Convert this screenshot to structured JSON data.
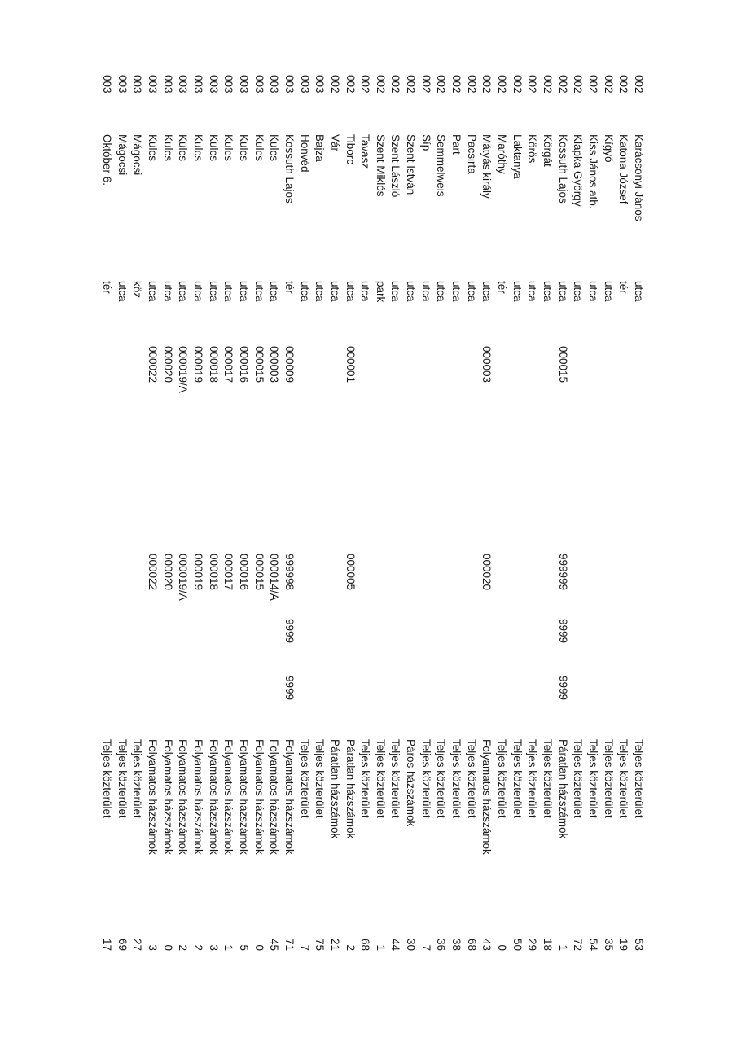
{
  "rows": [
    {
      "code": "002",
      "name": "Karácsonyi János",
      "type": "utca",
      "from": "",
      "to": "",
      "x1": "",
      "x2": "",
      "scope": "Teljes közterület",
      "count": "53"
    },
    {
      "code": "002",
      "name": "Katona József",
      "type": "tér",
      "from": "",
      "to": "",
      "x1": "",
      "x2": "",
      "scope": "Teljes közterület",
      "count": "19"
    },
    {
      "code": "002",
      "name": "Kígyó",
      "type": "utca",
      "from": "",
      "to": "",
      "x1": "",
      "x2": "",
      "scope": "Teljes közterület",
      "count": "35"
    },
    {
      "code": "002",
      "name": "Kiss János atb.",
      "type": "utca",
      "from": "",
      "to": "",
      "x1": "",
      "x2": "",
      "scope": "Teljes közterület",
      "count": "54"
    },
    {
      "code": "002",
      "name": "Klapka György",
      "type": "utca",
      "from": "",
      "to": "",
      "x1": "",
      "x2": "",
      "scope": "Teljes közterület",
      "count": "72"
    },
    {
      "code": "002",
      "name": "Kossuth Lajos",
      "type": "utca",
      "from": "000015",
      "to": "999999",
      "x1": "9999",
      "x2": "9999",
      "scope": "Páratlan házszámok",
      "count": "1"
    },
    {
      "code": "002",
      "name": "Körgát",
      "type": "utca",
      "from": "",
      "to": "",
      "x1": "",
      "x2": "",
      "scope": "Teljes közterület",
      "count": "18"
    },
    {
      "code": "002",
      "name": "Körös",
      "type": "utca",
      "from": "",
      "to": "",
      "x1": "",
      "x2": "",
      "scope": "Teljes közterület",
      "count": "29"
    },
    {
      "code": "002",
      "name": "Laktanya",
      "type": "utca",
      "from": "",
      "to": "",
      "x1": "",
      "x2": "",
      "scope": "Teljes közterület",
      "count": "50"
    },
    {
      "code": "002",
      "name": "Maróthy",
      "type": "tér",
      "from": "",
      "to": "",
      "x1": "",
      "x2": "",
      "scope": "Teljes közterület",
      "count": "0"
    },
    {
      "code": "002",
      "name": "Mátyás király",
      "type": "utca",
      "from": "000003",
      "to": "000020",
      "x1": "",
      "x2": "",
      "scope": "Folyamatos házszámok",
      "count": "43"
    },
    {
      "code": "002",
      "name": "Pacsirta",
      "type": "utca",
      "from": "",
      "to": "",
      "x1": "",
      "x2": "",
      "scope": "Teljes közterület",
      "count": "68"
    },
    {
      "code": "002",
      "name": "Part",
      "type": "utca",
      "from": "",
      "to": "",
      "x1": "",
      "x2": "",
      "scope": "Teljes közterület",
      "count": "38"
    },
    {
      "code": "002",
      "name": "Semmelweis",
      "type": "utca",
      "from": "",
      "to": "",
      "x1": "",
      "x2": "",
      "scope": "Teljes közterület",
      "count": "36"
    },
    {
      "code": "002",
      "name": "Síp",
      "type": "utca",
      "from": "",
      "to": "",
      "x1": "",
      "x2": "",
      "scope": "Teljes közterület",
      "count": "7"
    },
    {
      "code": "002",
      "name": "Szent István",
      "type": "utca",
      "from": "",
      "to": "",
      "x1": "",
      "x2": "",
      "scope": "Páros házszámok",
      "count": "30"
    },
    {
      "code": "002",
      "name": "Szent László",
      "type": "utca",
      "from": "",
      "to": "",
      "x1": "",
      "x2": "",
      "scope": "Teljes közterület",
      "count": "44"
    },
    {
      "code": "002",
      "name": "Szent Miklós",
      "type": "park",
      "from": "",
      "to": "",
      "x1": "",
      "x2": "",
      "scope": "Teljes közterület",
      "count": "1"
    },
    {
      "code": "002",
      "name": "Tavasz",
      "type": "utca",
      "from": "",
      "to": "",
      "x1": "",
      "x2": "",
      "scope": "Teljes közterület",
      "count": "68"
    },
    {
      "code": "002",
      "name": "Tiborc",
      "type": "utca",
      "from": "000001",
      "to": "000005",
      "x1": "",
      "x2": "",
      "scope": "Páratlan házszámok",
      "count": "2"
    },
    {
      "code": "002",
      "name": "Vár",
      "type": "utca",
      "from": "",
      "to": "",
      "x1": "",
      "x2": "",
      "scope": "Páratlan házszámok",
      "count": "21"
    },
    {
      "code": "003",
      "name": "Bajza",
      "type": "utca",
      "from": "",
      "to": "",
      "x1": "",
      "x2": "",
      "scope": "Teljes közterület",
      "count": "75"
    },
    {
      "code": "003",
      "name": "Honvéd",
      "type": "utca",
      "from": "",
      "to": "",
      "x1": "",
      "x2": "",
      "scope": "Teljes közterület",
      "count": "7"
    },
    {
      "code": "003",
      "name": "Kossuth Lajos",
      "type": "tér",
      "from": "000009",
      "to": "999998",
      "x1": "9999",
      "x2": "9999",
      "scope": "Folyamatos házszámok",
      "count": "71"
    },
    {
      "code": "003",
      "name": "Kulcs",
      "type": "utca",
      "from": "000003",
      "to": "000014/A",
      "x1": "",
      "x2": "",
      "scope": "Folyamatos házszámok",
      "count": "45"
    },
    {
      "code": "003",
      "name": "Kulcs",
      "type": "utca",
      "from": "000015",
      "to": "000015",
      "x1": "",
      "x2": "",
      "scope": "Folyamatos házszámok",
      "count": "0"
    },
    {
      "code": "003",
      "name": "Kulcs",
      "type": "utca",
      "from": "000016",
      "to": "000016",
      "x1": "",
      "x2": "",
      "scope": "Folyamatos házszámok",
      "count": "5"
    },
    {
      "code": "003",
      "name": "Kulcs",
      "type": "utca",
      "from": "000017",
      "to": "000017",
      "x1": "",
      "x2": "",
      "scope": "Folyamatos házszámok",
      "count": "1"
    },
    {
      "code": "003",
      "name": "Kulcs",
      "type": "utca",
      "from": "000018",
      "to": "000018",
      "x1": "",
      "x2": "",
      "scope": "Folyamatos házszámok",
      "count": "3"
    },
    {
      "code": "003",
      "name": "Kulcs",
      "type": "utca",
      "from": "000019",
      "to": "000019",
      "x1": "",
      "x2": "",
      "scope": "Folyamatos házszámok",
      "count": "2"
    },
    {
      "code": "003",
      "name": "Kulcs",
      "type": "utca",
      "from": "000019/A",
      "to": "000019/A",
      "x1": "",
      "x2": "",
      "scope": "Folyamatos házszámok",
      "count": "2"
    },
    {
      "code": "003",
      "name": "Kulcs",
      "type": "utca",
      "from": "000020",
      "to": "000020",
      "x1": "",
      "x2": "",
      "scope": "Folyamatos házszámok",
      "count": "0"
    },
    {
      "code": "003",
      "name": "Kulcs",
      "type": "utca",
      "from": "000022",
      "to": "000022",
      "x1": "",
      "x2": "",
      "scope": "Folyamatos házszámok",
      "count": "3"
    },
    {
      "code": "003",
      "name": "Mágocsi",
      "type": "köz",
      "from": "",
      "to": "",
      "x1": "",
      "x2": "",
      "scope": "Teljes közterület",
      "count": "27"
    },
    {
      "code": "003",
      "name": "Mágocsi",
      "type": "utca",
      "from": "",
      "to": "",
      "x1": "",
      "x2": "",
      "scope": "Teljes közterület",
      "count": "69"
    },
    {
      "code": "003",
      "name": "Október 6.",
      "type": "tér",
      "from": "",
      "to": "",
      "x1": "",
      "x2": "",
      "scope": "Teljes közterület",
      "count": "17"
    }
  ]
}
